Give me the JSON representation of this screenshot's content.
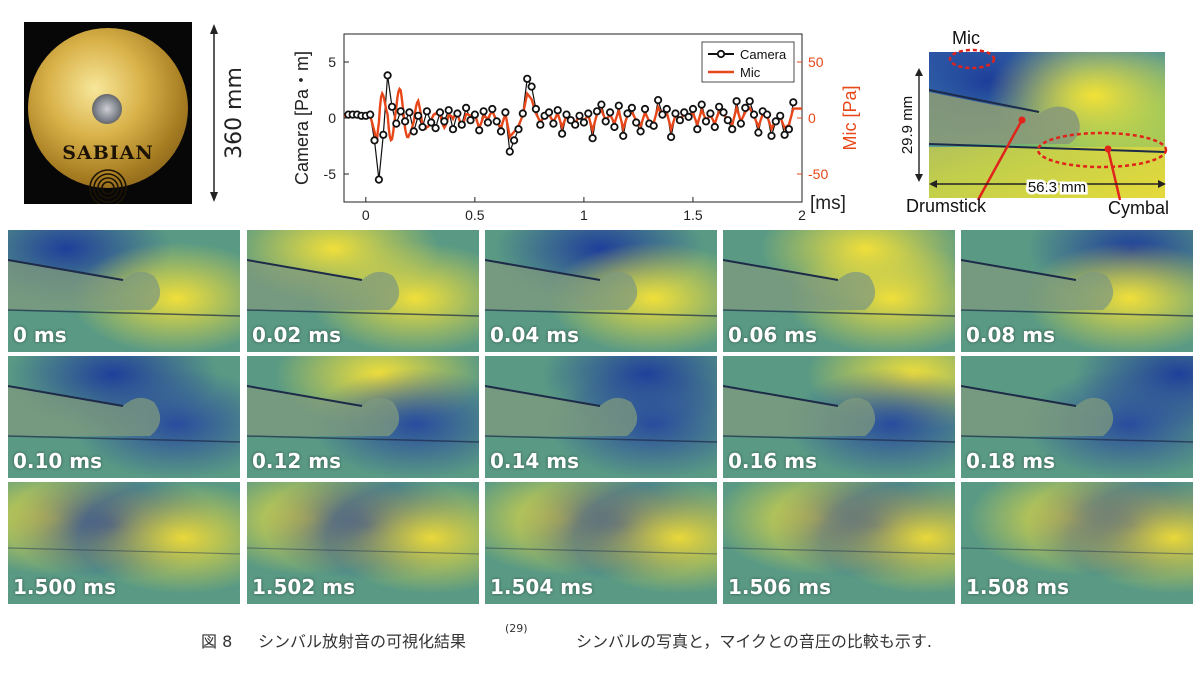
{
  "figure": {
    "cymbal_brand": "SABIAN",
    "cymbal_dimension": "360 mm"
  },
  "chart_data": {
    "type": "line",
    "xlabel": "[ms]",
    "ylabel_left": "Camera [Pa・m]",
    "ylabel_right": "Mic [Pa]",
    "xlim": [
      -0.1,
      2.0
    ],
    "ylim_left": [
      -7.5,
      7.5
    ],
    "ylim_right": [
      -75,
      75
    ],
    "x_ticks": [
      "0",
      "0.5",
      "1",
      "1.5",
      "2"
    ],
    "y_ticks_left": [
      "5",
      "0",
      "-5"
    ],
    "y_ticks_right": [
      "50",
      "0",
      "-50"
    ],
    "legend_position": "top-right",
    "series": [
      {
        "name": "Camera",
        "axis": "left",
        "color": "#111111",
        "x": [
          -0.08,
          -0.06,
          -0.04,
          -0.02,
          0.0,
          0.02,
          0.04,
          0.06,
          0.08,
          0.1,
          0.12,
          0.14,
          0.16,
          0.18,
          0.2,
          0.22,
          0.24,
          0.26,
          0.28,
          0.3,
          0.32,
          0.34,
          0.36,
          0.38,
          0.4,
          0.42,
          0.44,
          0.46,
          0.48,
          0.5,
          0.52,
          0.54,
          0.56,
          0.58,
          0.6,
          0.62,
          0.64,
          0.66,
          0.68,
          0.7,
          0.72,
          0.74,
          0.76,
          0.78,
          0.8,
          0.82,
          0.84,
          0.86,
          0.88,
          0.9,
          0.92,
          0.94,
          0.96,
          0.98,
          1.0,
          1.02,
          1.04,
          1.06,
          1.08,
          1.1,
          1.12,
          1.14,
          1.16,
          1.18,
          1.2,
          1.22,
          1.24,
          1.26,
          1.28,
          1.3,
          1.32,
          1.34,
          1.36,
          1.38,
          1.4,
          1.42,
          1.44,
          1.46,
          1.48,
          1.5,
          1.52,
          1.54,
          1.56,
          1.58,
          1.6,
          1.62,
          1.64,
          1.66,
          1.68,
          1.7,
          1.72,
          1.74,
          1.76,
          1.78,
          1.8,
          1.82,
          1.84,
          1.86,
          1.88,
          1.9,
          1.92,
          1.94,
          1.96
        ],
        "y": [
          0.3,
          0.3,
          0.3,
          0.2,
          0.2,
          0.3,
          -2.0,
          -5.5,
          -1.5,
          3.8,
          1.0,
          -0.5,
          0.6,
          -0.3,
          0.5,
          -1.2,
          0.2,
          -0.8,
          0.6,
          -0.4,
          -0.9,
          0.5,
          -0.3,
          0.7,
          -1.0,
          0.4,
          -0.6,
          0.9,
          -0.2,
          0.3,
          -1.1,
          0.6,
          -0.4,
          0.8,
          -0.3,
          -1.2,
          0.5,
          -3.0,
          -2.0,
          -1.0,
          0.4,
          3.5,
          2.8,
          0.8,
          -0.6,
          0.2,
          0.5,
          -0.5,
          0.7,
          -1.4,
          0.3,
          -0.2,
          -0.6,
          0.2,
          -0.4,
          0.4,
          -1.8,
          0.6,
          1.2,
          -0.3,
          0.5,
          -0.8,
          1.1,
          -1.6,
          0.4,
          0.9,
          -0.4,
          -1.2,
          0.8,
          -0.5,
          -0.7,
          1.6,
          0.3,
          0.8,
          -1.7,
          0.4,
          -0.2,
          0.5,
          0.1,
          0.8,
          -1.0,
          1.2,
          -0.3,
          0.4,
          -0.8,
          1.0,
          0.5,
          -0.2,
          -1.0,
          1.5,
          -0.5,
          0.9,
          1.5,
          0.3,
          -1.3,
          0.6,
          0.3,
          -1.6,
          -0.3,
          0.2,
          -1.5,
          -1.0,
          1.4
        ]
      },
      {
        "name": "Mic",
        "axis": "right",
        "color": "#e8471a"
      }
    ]
  },
  "schematic": {
    "mic_label": "Mic",
    "height_label": "29.9 mm",
    "width_label": "56.3 mm",
    "drumstick_label": "Drumstick",
    "cymbal_label": "Cymbal"
  },
  "frames": [
    {
      "label": "0 ms"
    },
    {
      "label": "0.02 ms"
    },
    {
      "label": "0.04 ms"
    },
    {
      "label": "0.06 ms"
    },
    {
      "label": "0.08 ms"
    },
    {
      "label": "0.10 ms"
    },
    {
      "label": "0.12 ms"
    },
    {
      "label": "0.14 ms"
    },
    {
      "label": "0.16 ms"
    },
    {
      "label": "0.18 ms"
    },
    {
      "label": "1.500 ms"
    },
    {
      "label": "1.502 ms"
    },
    {
      "label": "1.504 ms"
    },
    {
      "label": "1.506 ms"
    },
    {
      "label": "1.508 ms"
    }
  ],
  "caption": {
    "number": "図 8",
    "title": "シンバル放射音の可視化結果",
    "reference": "(29)",
    "description": "シンバルの写真と，マイクとの音圧の比較も示す."
  }
}
